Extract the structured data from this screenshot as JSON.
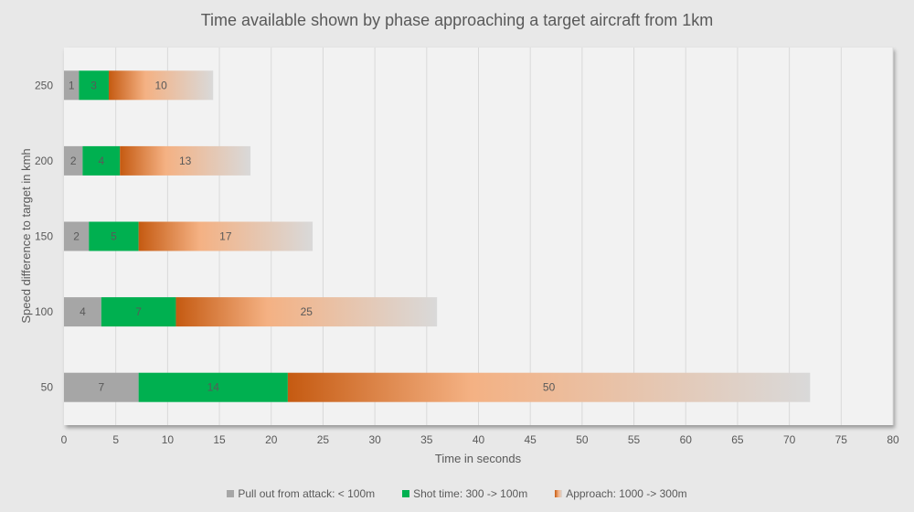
{
  "chart_data": {
    "type": "bar",
    "orientation": "horizontal",
    "stacked": true,
    "title": "Time available shown by phase approaching a target aircraft from 1km",
    "xlabel": "Time in seconds",
    "ylabel": "Speed difference to target in kmh",
    "xlim": [
      0,
      80
    ],
    "xticks": [
      0,
      5,
      10,
      15,
      20,
      25,
      30,
      35,
      40,
      45,
      50,
      55,
      60,
      65,
      70,
      75,
      80
    ],
    "grid": true,
    "legend_position": "bottom",
    "categories": [
      "250",
      "200",
      "150",
      "100",
      "50"
    ],
    "series": [
      {
        "name": "Pull out from attack: < 100m",
        "color": "#a6a6a6",
        "values": [
          1.44,
          1.8,
          2.4,
          3.6,
          7.2
        ],
        "labels": [
          "1",
          "2",
          "2",
          "4",
          "7"
        ]
      },
      {
        "name": "Shot time: 300 -> 100m",
        "color": "#00b050",
        "values": [
          2.88,
          3.6,
          4.8,
          7.2,
          14.4
        ],
        "labels": [
          "3",
          "4",
          "5",
          "7",
          "14"
        ]
      },
      {
        "name": "Approach: 1000 -> 300m",
        "color": "#f4b183",
        "gradient": [
          "#c55a11",
          "#f4b183",
          "#d9d9d9"
        ],
        "values": [
          10.08,
          12.6,
          16.8,
          25.2,
          50.4
        ],
        "labels": [
          "10",
          "13",
          "17",
          "25",
          "50"
        ]
      }
    ]
  }
}
